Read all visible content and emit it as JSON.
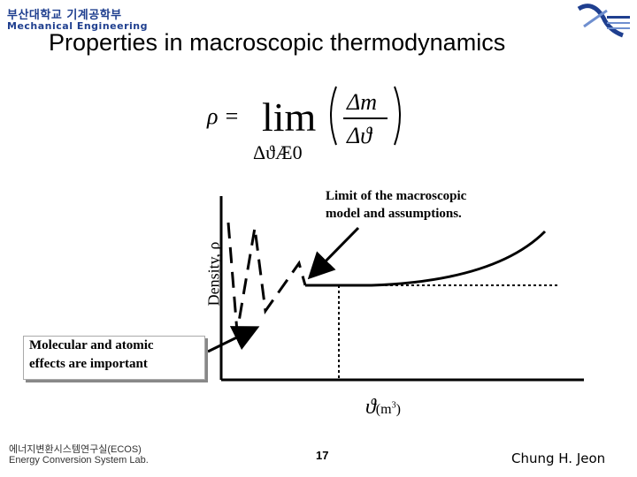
{
  "header": {
    "dept_korean": "부산대학교 기계공학부",
    "dept_english": "Mechanical Engineering",
    "title": "Properties in macroscopic thermodynamics"
  },
  "equation": {
    "lhs": "ρ =",
    "operator": "lim",
    "limit_sub": "ΔϑÆ0",
    "numerator": "Δm",
    "denominator": "Δϑ"
  },
  "diagram": {
    "y_label": "Density, ρ",
    "x_symbol": "ϑ",
    "x_unit_base": "(m",
    "x_unit_exp": "3",
    "x_unit_close": ")",
    "annotation_limit_line1": "Limit of the macroscopic",
    "annotation_limit_line2": "model and assumptions.",
    "annotation_molecular_line1": "Molecular and atomic",
    "annotation_molecular_line2": "effects are important"
  },
  "footer": {
    "lab_korean": "에너지변환시스템연구실(ECOS)",
    "lab_english": "Energy Conversion System Lab.",
    "page": "17",
    "author": "Chung H. Jeon"
  },
  "colors": {
    "brand": "#1f3f8f",
    "line": "#000000"
  }
}
